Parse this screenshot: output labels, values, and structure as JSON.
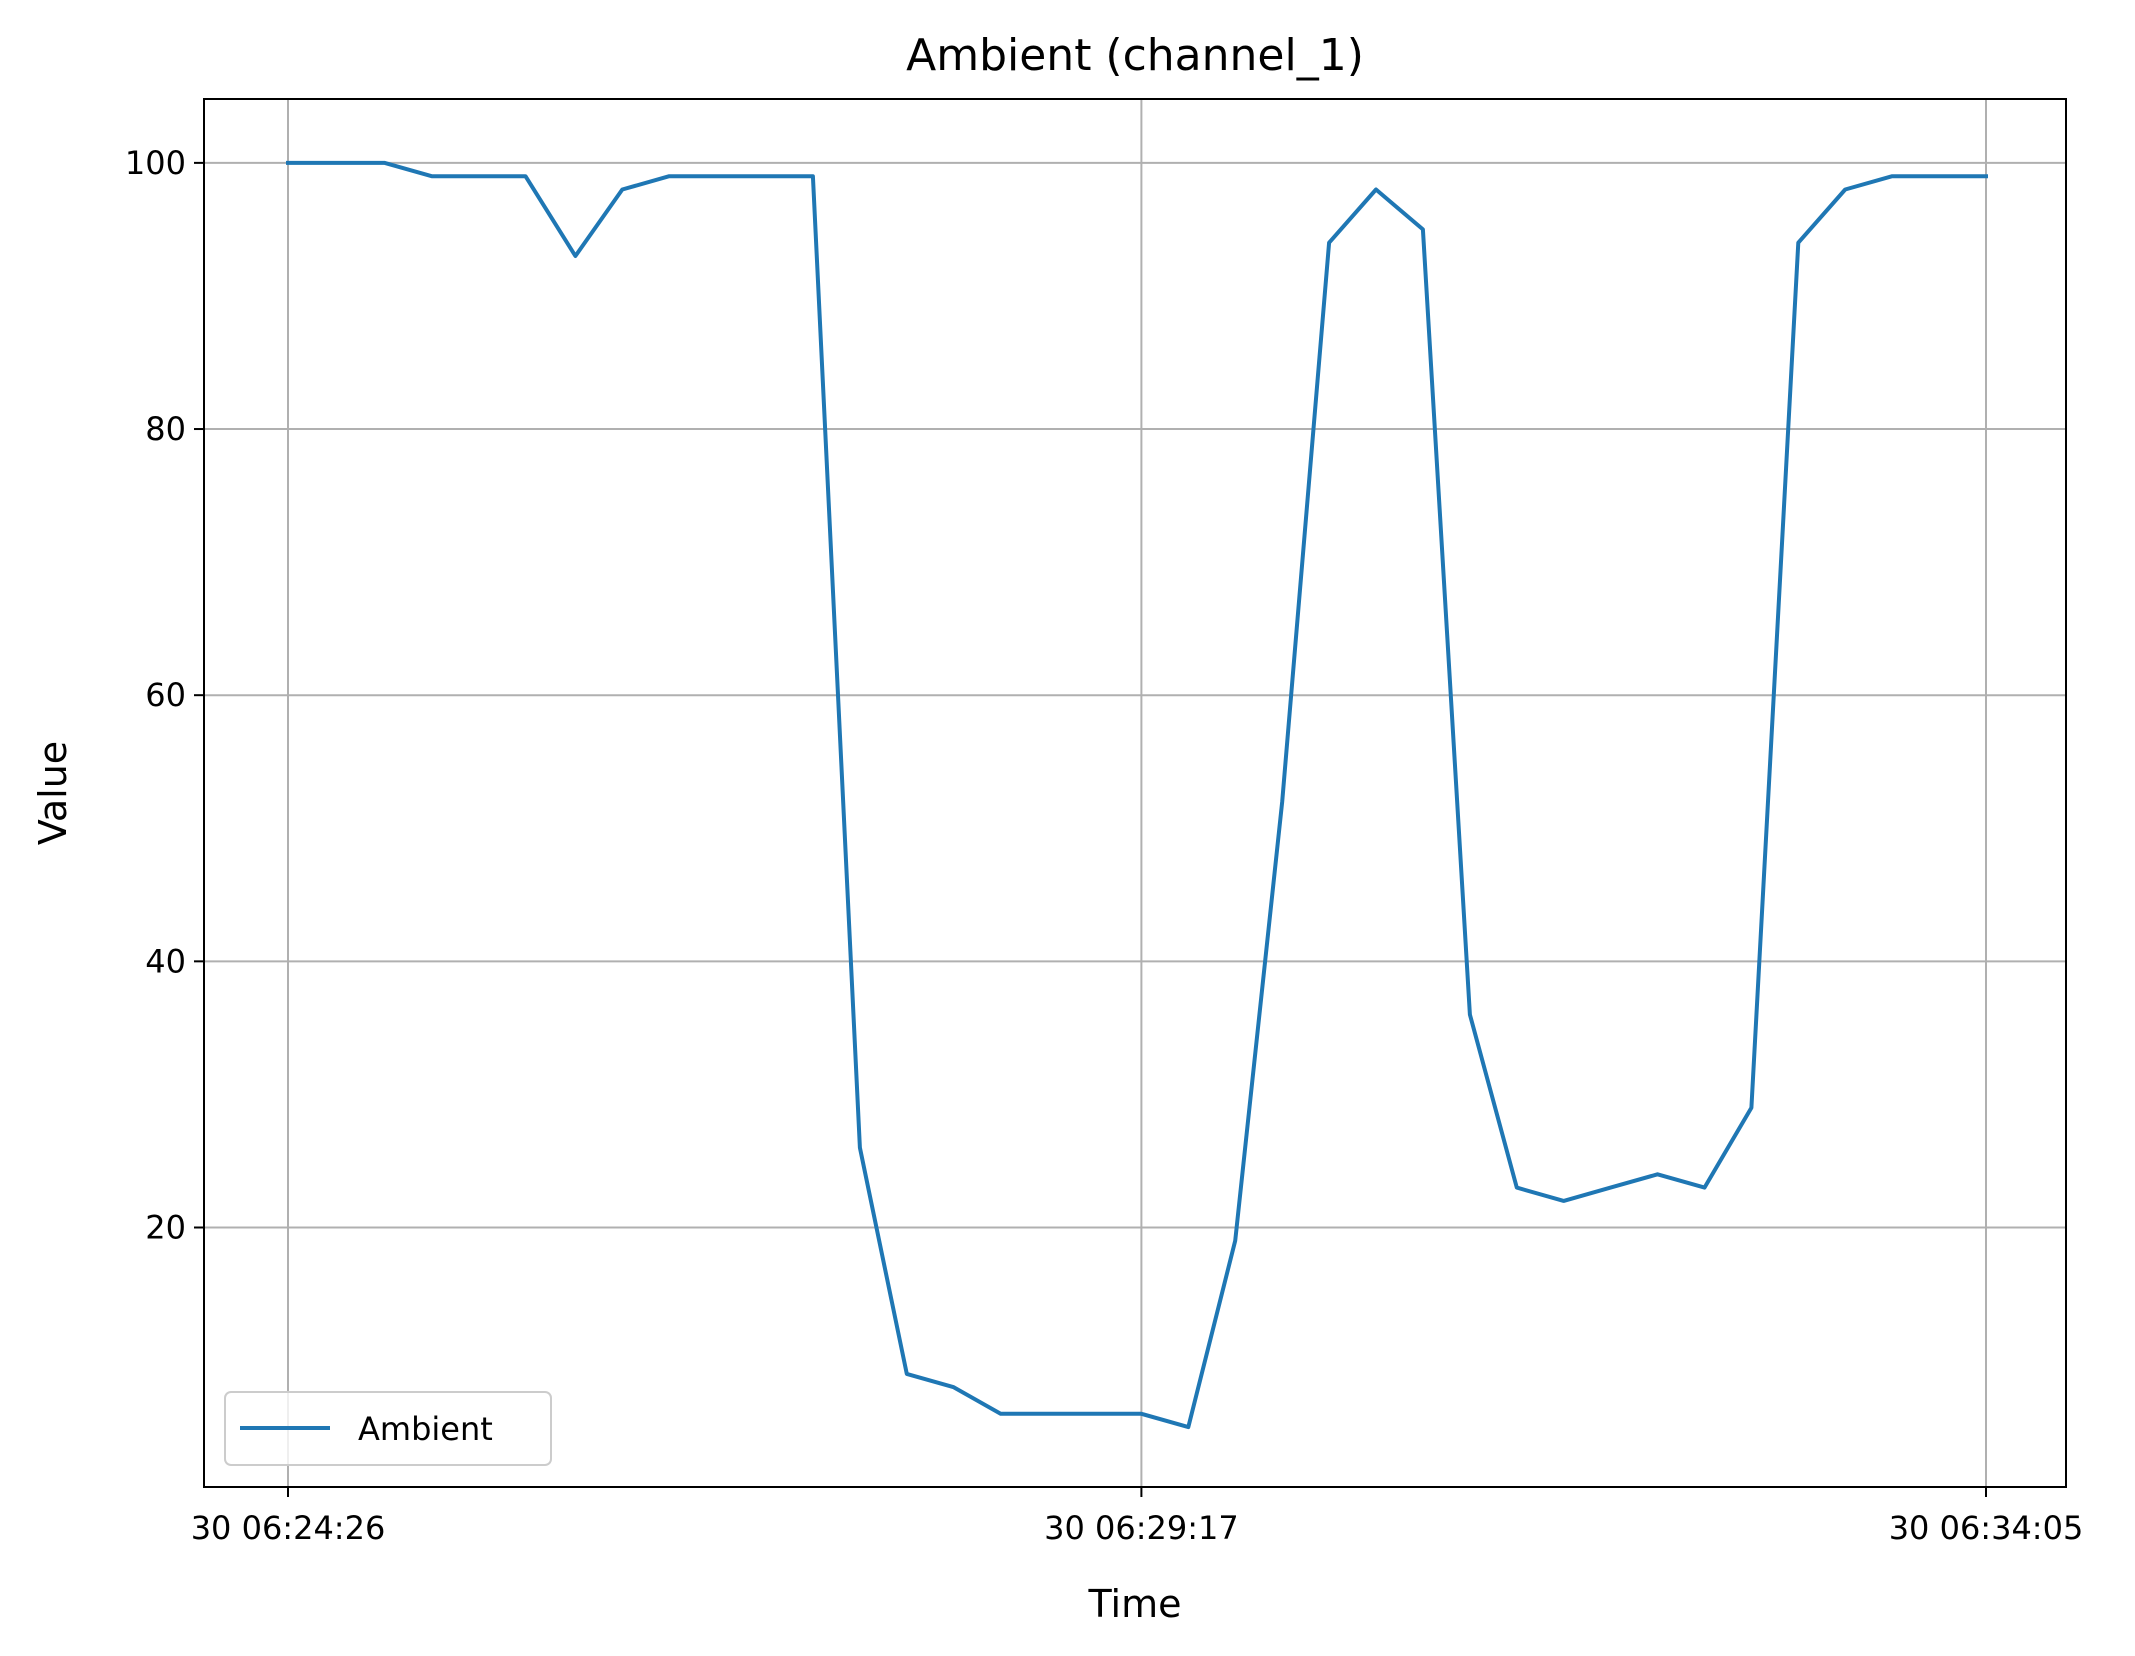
{
  "chart_data": {
    "type": "line",
    "title": "Ambient (channel_1)",
    "xlabel": "Time",
    "ylabel": "Value",
    "x_ticks": [
      "30 06:24:26",
      "30 06:29:17",
      "30 06:34:05"
    ],
    "y_ticks": [
      20,
      40,
      60,
      80,
      100
    ],
    "ylim": [
      0.5,
      104.8
    ],
    "grid": true,
    "legend_position": "lower-left",
    "series": [
      {
        "name": "Ambient",
        "color": "#1f77b4",
        "x": [
          "06:24:26",
          "06:24:42",
          "06:24:59",
          "06:25:15",
          "06:25:31",
          "06:25:47",
          "06:26:04",
          "06:26:20",
          "06:26:36",
          "06:26:52",
          "06:27:09",
          "06:27:25",
          "06:27:41",
          "06:27:57",
          "06:28:13",
          "06:28:29",
          "06:28:45",
          "06:29:01",
          "06:29:17",
          "06:29:33",
          "06:29:49",
          "06:30:05",
          "06:30:21",
          "06:30:37",
          "06:30:53",
          "06:31:09",
          "06:31:25",
          "06:31:41",
          "06:31:57",
          "06:32:13",
          "06:32:29",
          "06:32:45",
          "06:33:01",
          "06:33:17",
          "06:33:33",
          "06:33:49",
          "06:34:05"
        ],
        "values": [
          100,
          100,
          100,
          99,
          99,
          99,
          93,
          98,
          99,
          99,
          99,
          99,
          26,
          9,
          8,
          6,
          6,
          6,
          6,
          5,
          19,
          52,
          94,
          98,
          95,
          36,
          23,
          22,
          23,
          24,
          23,
          29,
          94,
          98,
          99,
          99,
          99
        ]
      }
    ]
  }
}
